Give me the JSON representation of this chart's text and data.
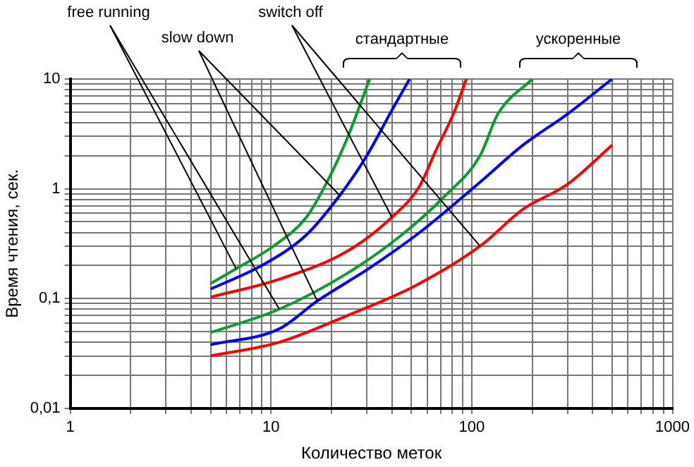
{
  "chart_data": {
    "type": "line",
    "xlabel": "Количество меток",
    "ylabel": "Время чтения, сек.",
    "log": "xy",
    "grid": true,
    "legend": false,
    "marker": "none",
    "line_style": "solid",
    "xlim": [
      1,
      1000
    ],
    "ylim": [
      0.01,
      10
    ],
    "xticks": [
      1,
      {
        "value": 2,
        "label": null
      },
      {
        "value": 3,
        "label": null
      },
      {
        "value": 4,
        "label": null
      },
      {
        "value": 5,
        "label": null
      },
      {
        "value": 6,
        "label": null
      },
      {
        "value": 7,
        "label": null
      },
      {
        "value": 8,
        "label": null
      },
      {
        "value": 9,
        "label": null
      },
      10,
      {
        "value": 20,
        "label": null
      },
      {
        "value": 30,
        "label": null
      },
      {
        "value": 40,
        "label": null
      },
      {
        "value": 50,
        "label": null
      },
      {
        "value": 60,
        "label": null
      },
      {
        "value": 70,
        "label": null
      },
      {
        "value": 80,
        "label": null
      },
      {
        "value": 90,
        "label": null
      },
      100,
      {
        "value": 200,
        "label": null
      },
      {
        "value": 300,
        "label": null
      },
      {
        "value": 400,
        "label": null
      },
      {
        "value": 500,
        "label": null
      },
      {
        "value": 600,
        "label": null
      },
      {
        "value": 700,
        "label": null
      },
      {
        "value": 800,
        "label": null
      },
      {
        "value": 900,
        "label": null
      },
      1000
    ],
    "yticks": [
      {
        "value": 0.01,
        "label": "0,01"
      },
      {
        "value": 0.02,
        "label": null
      },
      {
        "value": 0.03,
        "label": null
      },
      {
        "value": 0.04,
        "label": null
      },
      {
        "value": 0.05,
        "label": null
      },
      {
        "value": 0.06,
        "label": null
      },
      {
        "value": 0.07,
        "label": null
      },
      {
        "value": 0.08,
        "label": null
      },
      {
        "value": 0.09,
        "label": null
      },
      {
        "value": 0.1,
        "label": "0,1"
      },
      {
        "value": 0.2,
        "label": null
      },
      {
        "value": 0.3,
        "label": null
      },
      {
        "value": 0.4,
        "label": null
      },
      {
        "value": 0.5,
        "label": null
      },
      {
        "value": 0.6,
        "label": null
      },
      {
        "value": 0.7,
        "label": null
      },
      {
        "value": 0.8,
        "label": null
      },
      {
        "value": 0.9,
        "label": null
      },
      1,
      {
        "value": 2,
        "label": null
      },
      {
        "value": 3,
        "label": null
      },
      {
        "value": 4,
        "label": null
      },
      {
        "value": 5,
        "label": null
      },
      {
        "value": 6,
        "label": null
      },
      {
        "value": 7,
        "label": null
      },
      {
        "value": 8,
        "label": null
      },
      {
        "value": 9,
        "label": null
      },
      10
    ],
    "series": [
      {
        "name": "free running",
        "color": "#119933",
        "x": [
          5,
          6.7,
          10,
          15,
          19,
          24,
          31
        ],
        "values": [
          0.137,
          0.187,
          0.29,
          0.55,
          1.15,
          2.9,
          10
        ]
      },
      {
        "name": "slow down",
        "color": "#0000ff",
        "x": [
          5,
          9,
          15,
          22,
          30,
          40,
          49
        ],
        "values": [
          0.122,
          0.2,
          0.38,
          0.87,
          2.0,
          5.2,
          10
        ]
      },
      {
        "name": "switch off",
        "color": "#ff0000",
        "x": [
          5,
          11,
          24,
          40,
          55,
          66,
          81,
          94
        ],
        "values": [
          0.103,
          0.15,
          0.27,
          0.55,
          1.06,
          2.2,
          4.8,
          10
        ]
      },
      {
        "color": "#119933",
        "x": [
          5,
          11,
          24,
          44,
          74,
          110,
          135,
          200
        ],
        "values": [
          0.049,
          0.08,
          0.17,
          0.37,
          0.87,
          2.0,
          4.8,
          10
        ]
      },
      {
        "color": "#0000ff",
        "x": [
          5,
          11,
          17,
          31,
          55,
          110,
          180,
          300,
          500
        ],
        "values": [
          0.038,
          0.053,
          0.095,
          0.19,
          0.4,
          1.15,
          2.5,
          4.8,
          10
        ]
      },
      {
        "color": "#ff0000",
        "x": [
          5,
          11,
          24,
          52,
          110,
          180,
          300,
          500
        ],
        "values": [
          0.03,
          0.04,
          0.07,
          0.13,
          0.3,
          0.65,
          1.1,
          2.5
        ]
      }
    ],
    "annotations": [
      "стандартные",
      "ускоренные"
    ]
  }
}
